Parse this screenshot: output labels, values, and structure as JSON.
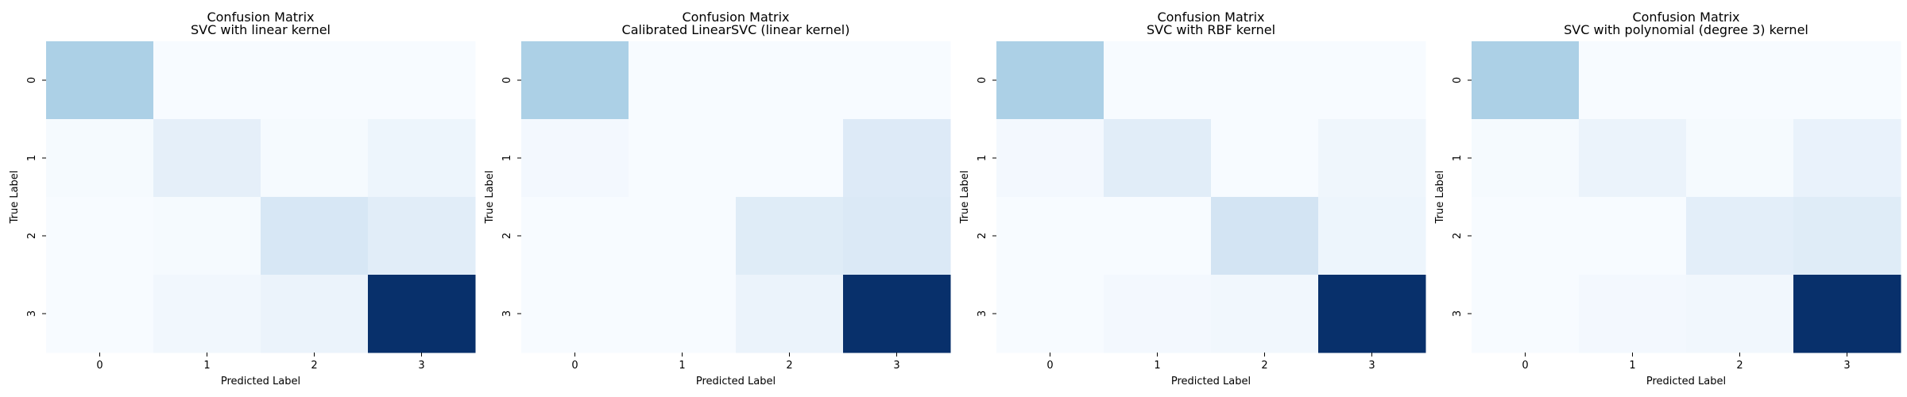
{
  "chart_data": [
    {
      "type": "heatmap",
      "title": [
        "Confusion Matrix",
        "SVC with linear kernel"
      ],
      "xlabel": "Predicted Label",
      "ylabel": "True Label",
      "x_ticks": [
        "0",
        "1",
        "2",
        "3"
      ],
      "y_ticks": [
        "0",
        "1",
        "2",
        "3"
      ],
      "colormap": "Blues",
      "vmax": 100,
      "values": [
        [
          33,
          0,
          0,
          0
        ],
        [
          1,
          9,
          1,
          5
        ],
        [
          0,
          1,
          16,
          11
        ],
        [
          0,
          3,
          6,
          100
        ]
      ]
    },
    {
      "type": "heatmap",
      "title": [
        "Confusion Matrix",
        "Calibrated LinearSVC (linear kernel)"
      ],
      "xlabel": "Predicted Label",
      "ylabel": "True Label",
      "x_ticks": [
        "0",
        "1",
        "2",
        "3"
      ],
      "y_ticks": [
        "0",
        "1",
        "2",
        "3"
      ],
      "colormap": "Blues",
      "vmax": 100,
      "values": [
        [
          33,
          0,
          0,
          0
        ],
        [
          2,
          0,
          0,
          13
        ],
        [
          0,
          0,
          12,
          14
        ],
        [
          0,
          0,
          6,
          100
        ]
      ]
    },
    {
      "type": "heatmap",
      "title": [
        "Confusion Matrix",
        "SVC with RBF kernel"
      ],
      "xlabel": "Predicted Label",
      "ylabel": "True Label",
      "x_ticks": [
        "0",
        "1",
        "2",
        "3"
      ],
      "y_ticks": [
        "0",
        "1",
        "2",
        "3"
      ],
      "colormap": "Blues",
      "vmax": 100,
      "values": [
        [
          33,
          0,
          0,
          0
        ],
        [
          2,
          11,
          0,
          4
        ],
        [
          0,
          0,
          18,
          5
        ],
        [
          0,
          2,
          3,
          100
        ]
      ]
    },
    {
      "type": "heatmap",
      "title": [
        "Confusion Matrix",
        "SVC with polynomial (degree 3) kernel"
      ],
      "xlabel": "Predicted Label",
      "ylabel": "True Label",
      "x_ticks": [
        "0",
        "1",
        "2",
        "3"
      ],
      "y_ticks": [
        "0",
        "1",
        "2",
        "3"
      ],
      "colormap": "Blues",
      "vmax": 100,
      "values": [
        [
          33,
          0,
          0,
          0
        ],
        [
          1,
          6,
          1,
          7
        ],
        [
          0,
          0,
          10,
          12
        ],
        [
          0,
          2,
          3,
          100
        ]
      ]
    }
  ]
}
